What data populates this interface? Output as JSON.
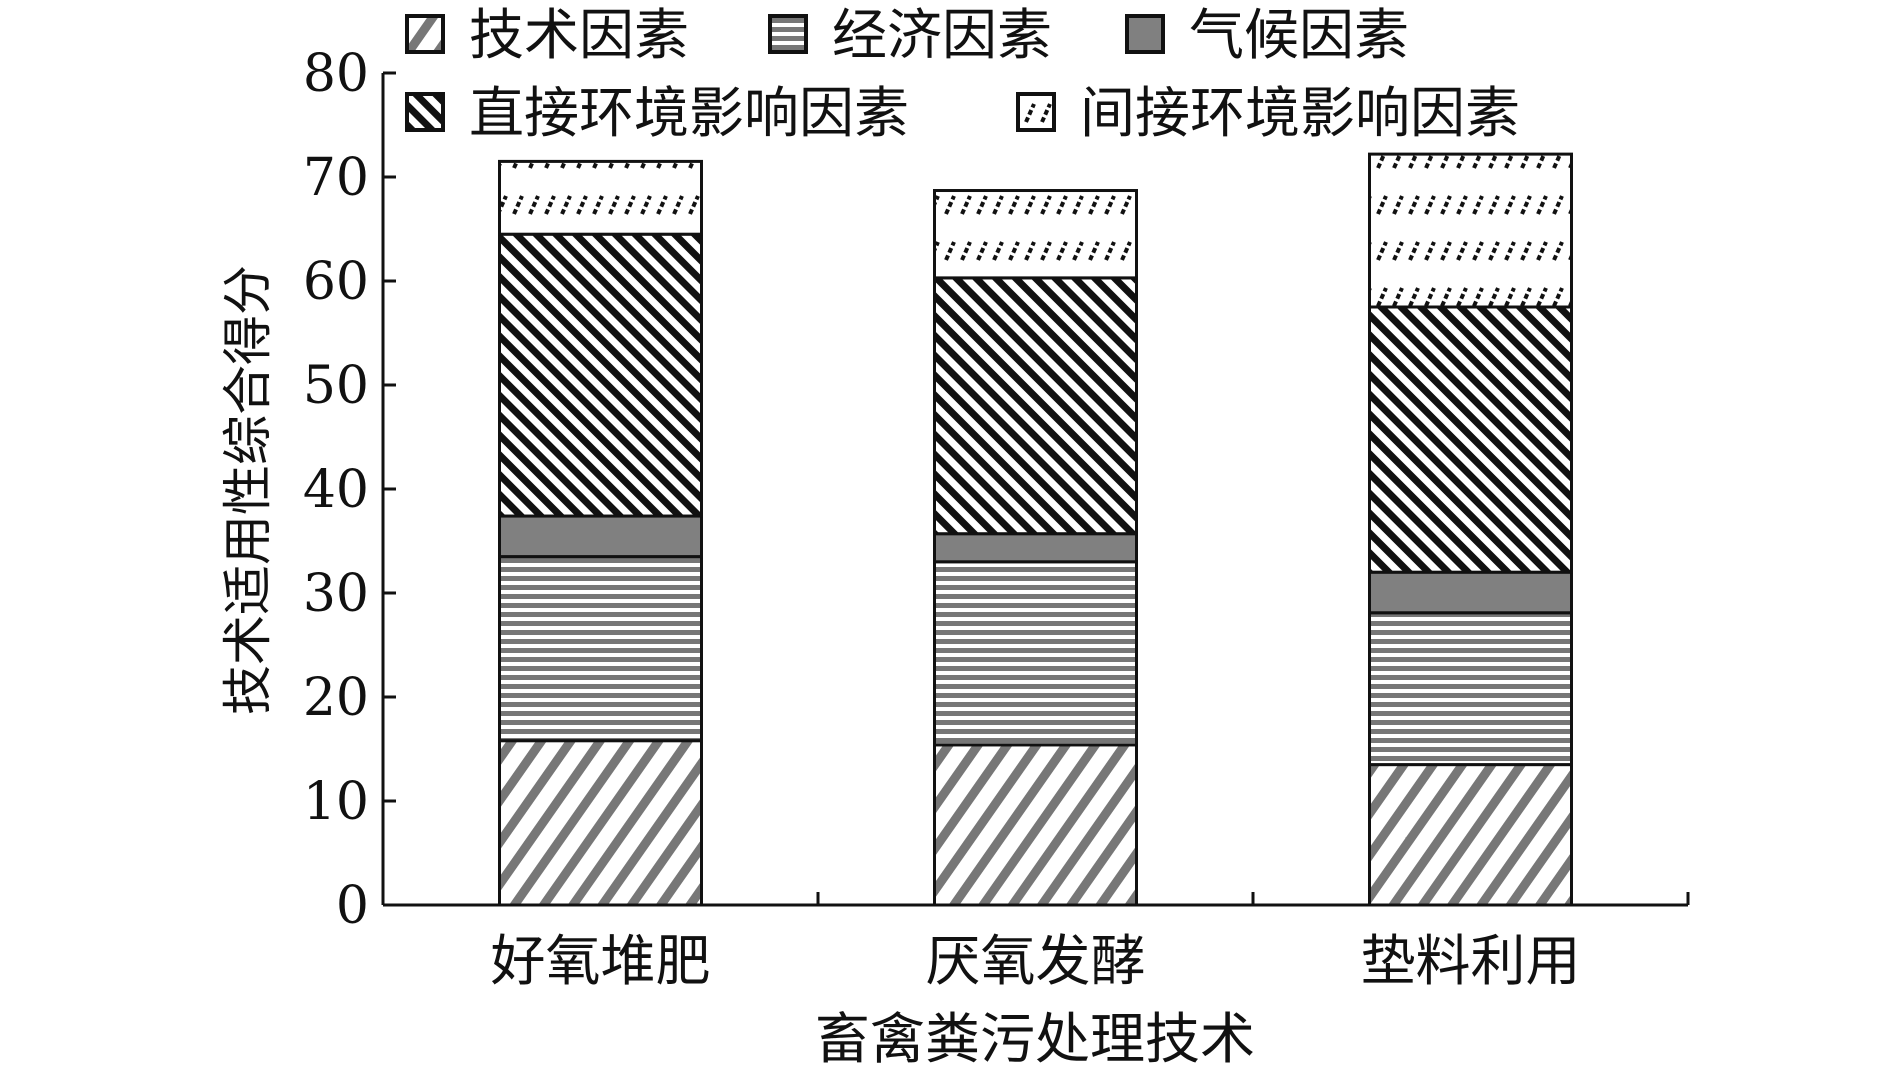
{
  "chart_data": {
    "type": "bar",
    "stacked": true,
    "xlabel": "畜禽粪污处理技术",
    "ylabel": "技术适用性综合得分",
    "ylim": [
      0,
      80
    ],
    "yticks": [
      0,
      10,
      20,
      30,
      40,
      50,
      60,
      70,
      80
    ],
    "categories": [
      "好氧堆肥",
      "厌氧发酵",
      "垫料利用"
    ],
    "series": [
      {
        "name": "技术因素",
        "values": [
          15.8,
          15.4,
          13.5
        ],
        "pattern": "diagonal-gray",
        "color": "#777777"
      },
      {
        "name": "经济因素",
        "values": [
          17.7,
          17.6,
          14.6
        ],
        "pattern": "horizontal-gray",
        "color": "#777777"
      },
      {
        "name": "气候因素",
        "values": [
          3.9,
          2.7,
          3.9
        ],
        "pattern": "solid-gray",
        "color": "#808080"
      },
      {
        "name": "直接环境影响因素",
        "values": [
          27.1,
          24.6,
          25.5
        ],
        "pattern": "diagonal-black",
        "color": "#111111"
      },
      {
        "name": "间接环境影响因素",
        "values": [
          7.0,
          8.4,
          14.7
        ],
        "pattern": "dashed-diagonal",
        "color": "#111111"
      }
    ],
    "legend_position": "top",
    "grid": false
  }
}
